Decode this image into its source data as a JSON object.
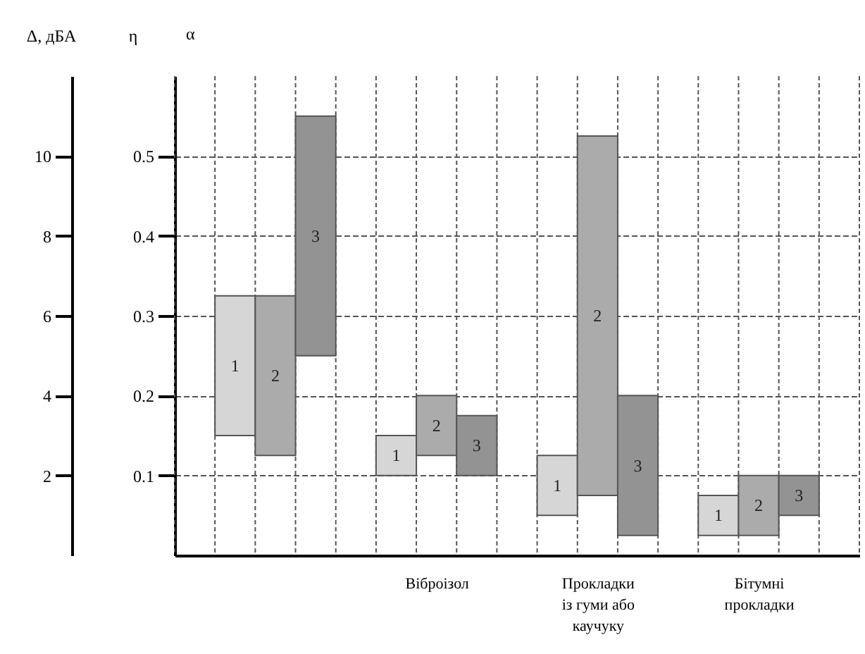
{
  "chart_data": {
    "type": "bar",
    "categories": [
      null,
      "Віброізол",
      "Прокладки із гуми або каучуку",
      "Бітумні прокладки"
    ],
    "series": [
      {
        "name": "1",
        "color": "#d6d6d6",
        "base": [
          3,
          2,
          1,
          0.5
        ],
        "values": [
          3.5,
          1,
          1.5,
          1
        ]
      },
      {
        "name": "2",
        "color": "#ababab",
        "axis": "y2",
        "base": [
          0.125,
          0.125,
          0.075,
          0.025
        ],
        "values": [
          0.2,
          0.075,
          0.45,
          0.075
        ]
      },
      {
        "name": "3",
        "color": "#939393",
        "axis": "y2",
        "base": [
          0.25,
          0.1,
          0.025,
          0.05
        ],
        "values": [
          0.3,
          0.075,
          0.175,
          0.05
        ]
      }
    ],
    "ylabel": "Δ, дБА",
    "y2label": "η",
    "annotations": [
      "α"
    ],
    "ylim": [
      0,
      12
    ],
    "yticks": [
      2,
      4,
      6,
      8,
      10
    ],
    "y2lim": [
      0,
      0.6
    ],
    "y2ticks": [
      0.1,
      0.2,
      0.3,
      0.4,
      0.5
    ],
    "grid": true,
    "legend": false
  }
}
